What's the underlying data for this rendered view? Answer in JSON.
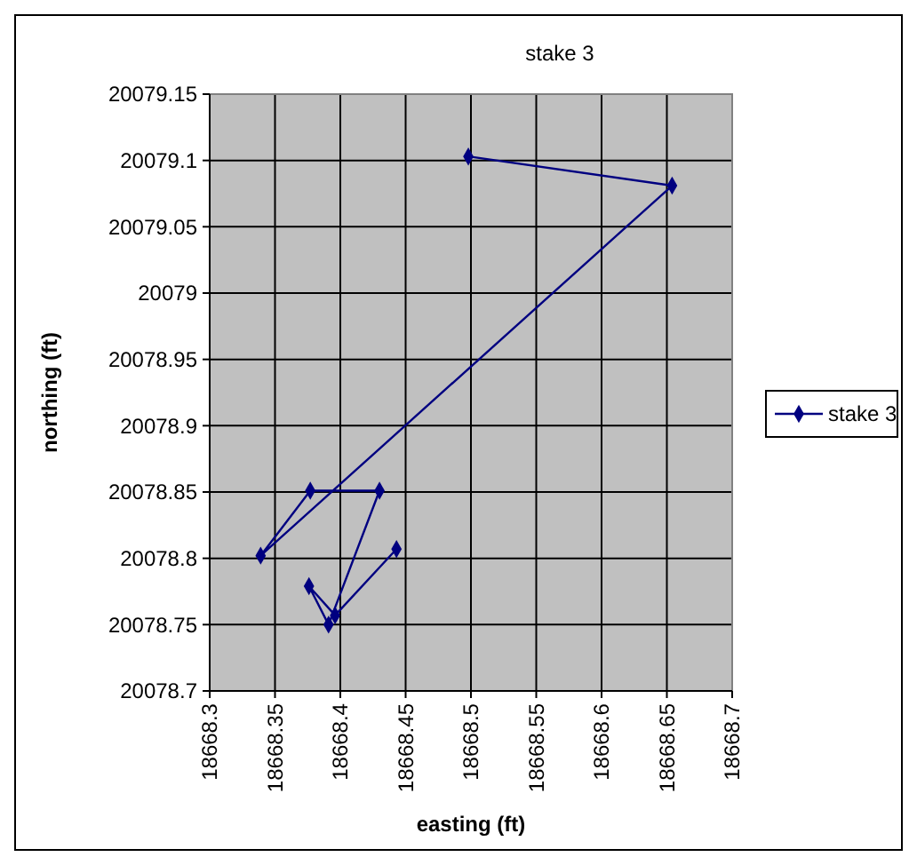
{
  "chart_data": {
    "type": "line",
    "title": "stake 3",
    "xlabel": "easting (ft)",
    "ylabel": "northing (ft)",
    "xlim": [
      18668.3,
      18668.7
    ],
    "xticks": [
      18668.3,
      18668.35,
      18668.4,
      18668.45,
      18668.5,
      18668.55,
      18668.6,
      18668.65,
      18668.7
    ],
    "ylim": [
      20078.7,
      20079.15
    ],
    "yticks": [
      20078.7,
      20078.75,
      20078.8,
      20078.85,
      20078.9,
      20078.95,
      20079,
      20079.05,
      20079.1,
      20079.15
    ],
    "grid": true,
    "legend": "right",
    "marker": "diamond",
    "line_style": "solid",
    "series": [
      {
        "name": "stake 3",
        "color": "#000080",
        "x": [
          18668.498,
          18668.654,
          18668.339,
          18668.377,
          18668.43,
          18668.391,
          18668.376,
          18668.396,
          18668.443
        ],
        "values": [
          20079.103,
          20079.081,
          20078.802,
          20078.851,
          20078.851,
          20078.75,
          20078.779,
          20078.757,
          20078.807
        ]
      }
    ]
  }
}
